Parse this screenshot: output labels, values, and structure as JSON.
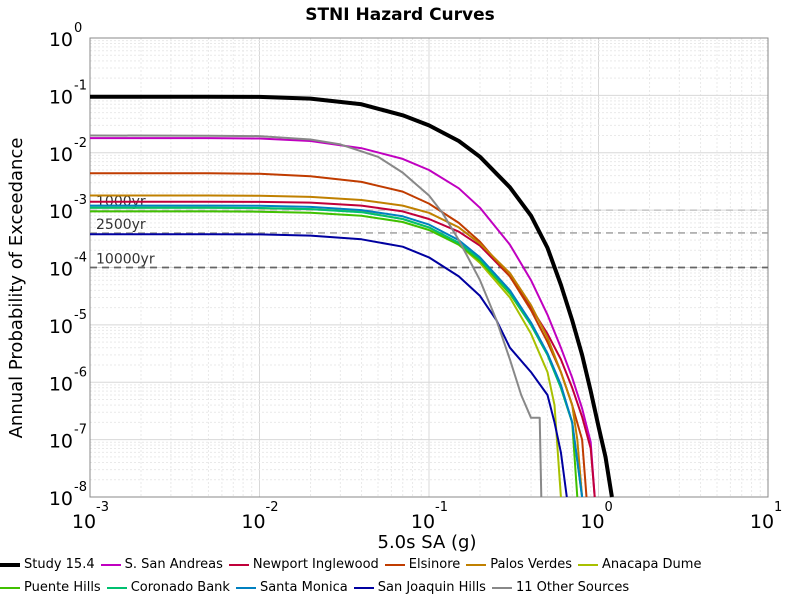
{
  "chart_data": {
    "type": "line",
    "title": "STNI Hazard Curves",
    "xlabel": "5.0s SA (g)",
    "ylabel": "Annual Probability of Exceedance",
    "xscale": "log",
    "yscale": "log",
    "xlim": [
      0.001,
      10
    ],
    "ylim": [
      1e-08,
      1
    ],
    "x_ticks": [
      {
        "base": "10",
        "exp": "-3",
        "value": 0.001
      },
      {
        "base": "10",
        "exp": "-2",
        "value": 0.01
      },
      {
        "base": "10",
        "exp": "-1",
        "value": 0.1
      },
      {
        "base": "10",
        "exp": "0",
        "value": 1
      },
      {
        "base": "10",
        "exp": "1",
        "value": 10
      }
    ],
    "y_ticks": [
      {
        "base": "10",
        "exp": "0",
        "value": 1
      },
      {
        "base": "10",
        "exp": "-1",
        "value": 0.1
      },
      {
        "base": "10",
        "exp": "-2",
        "value": 0.01
      },
      {
        "base": "10",
        "exp": "-3",
        "value": 0.001
      },
      {
        "base": "10",
        "exp": "-4",
        "value": 0.0001
      },
      {
        "base": "10",
        "exp": "-5",
        "value": 1e-05
      },
      {
        "base": "10",
        "exp": "-6",
        "value": 1e-06
      },
      {
        "base": "10",
        "exp": "-7",
        "value": 1e-07
      },
      {
        "base": "10",
        "exp": "-8",
        "value": 1e-08
      }
    ],
    "grid": true,
    "legend_position": "bottom",
    "reference_lines": [
      {
        "label": "1000yr",
        "y": 0.001
      },
      {
        "label": "2500yr",
        "y": 0.0004
      },
      {
        "label": "10000yr",
        "y": 0.0001
      }
    ],
    "series": [
      {
        "name": "Study 15.4",
        "color": "#000000",
        "width": 4,
        "points": [
          [
            0.001,
            0.095
          ],
          [
            0.005,
            0.095
          ],
          [
            0.01,
            0.094
          ],
          [
            0.02,
            0.088
          ],
          [
            0.04,
            0.07
          ],
          [
            0.07,
            0.045
          ],
          [
            0.1,
            0.03
          ],
          [
            0.15,
            0.016
          ],
          [
            0.2,
            0.0085
          ],
          [
            0.3,
            0.0025
          ],
          [
            0.4,
            0.0008
          ],
          [
            0.5,
            0.00022
          ],
          [
            0.6,
            5e-05
          ],
          [
            0.7,
            1.2e-05
          ],
          [
            0.8,
            3e-06
          ],
          [
            0.9,
            7e-07
          ],
          [
            1.0,
            1.7e-07
          ],
          [
            1.1,
            5e-08
          ],
          [
            1.2,
            1e-08
          ]
        ]
      },
      {
        "name": "S. San Andreas",
        "color": "#c000c0",
        "width": 2,
        "points": [
          [
            0.001,
            0.018
          ],
          [
            0.005,
            0.018
          ],
          [
            0.01,
            0.0177
          ],
          [
            0.02,
            0.016
          ],
          [
            0.04,
            0.012
          ],
          [
            0.07,
            0.0078
          ],
          [
            0.1,
            0.005
          ],
          [
            0.15,
            0.0024
          ],
          [
            0.2,
            0.0011
          ],
          [
            0.3,
            0.00025
          ],
          [
            0.4,
            6e-05
          ],
          [
            0.5,
            1.5e-05
          ],
          [
            0.6,
            4e-06
          ],
          [
            0.7,
            1.2e-06
          ],
          [
            0.8,
            3.5e-07
          ],
          [
            0.9,
            9e-08
          ],
          [
            0.95,
            1e-08
          ]
        ]
      },
      {
        "name": "Newport Inglewood",
        "color": "#c0003a",
        "width": 2,
        "points": [
          [
            0.001,
            0.0014
          ],
          [
            0.005,
            0.0014
          ],
          [
            0.01,
            0.00139
          ],
          [
            0.02,
            0.00135
          ],
          [
            0.04,
            0.0012
          ],
          [
            0.07,
            0.00095
          ],
          [
            0.1,
            0.0007
          ],
          [
            0.15,
            0.00042
          ],
          [
            0.2,
            0.00024
          ],
          [
            0.3,
            7e-05
          ],
          [
            0.4,
            2e-05
          ],
          [
            0.5,
            7e-06
          ],
          [
            0.6,
            2.5e-06
          ],
          [
            0.7,
            8e-07
          ],
          [
            0.8,
            2.5e-07
          ],
          [
            0.9,
            7e-08
          ],
          [
            0.95,
            1e-08
          ]
        ]
      },
      {
        "name": "Elsinore",
        "color": "#c03c00",
        "width": 2,
        "points": [
          [
            0.001,
            0.0044
          ],
          [
            0.005,
            0.0044
          ],
          [
            0.01,
            0.0043
          ],
          [
            0.02,
            0.0039
          ],
          [
            0.04,
            0.0031
          ],
          [
            0.07,
            0.0021
          ],
          [
            0.1,
            0.0013
          ],
          [
            0.15,
            0.0006
          ],
          [
            0.2,
            0.00028
          ],
          [
            0.3,
            7e-05
          ],
          [
            0.4,
            1.8e-05
          ],
          [
            0.5,
            5e-06
          ],
          [
            0.6,
            1.5e-06
          ],
          [
            0.7,
            4e-07
          ],
          [
            0.8,
            1e-07
          ],
          [
            0.85,
            1e-08
          ]
        ]
      },
      {
        "name": "Palos Verdes",
        "color": "#c08000",
        "width": 2,
        "points": [
          [
            0.001,
            0.0018
          ],
          [
            0.005,
            0.0018
          ],
          [
            0.01,
            0.00178
          ],
          [
            0.02,
            0.0017
          ],
          [
            0.04,
            0.0015
          ],
          [
            0.07,
            0.0012
          ],
          [
            0.1,
            0.0009
          ],
          [
            0.15,
            0.0005
          ],
          [
            0.2,
            0.00026
          ],
          [
            0.3,
            8e-05
          ],
          [
            0.4,
            2.2e-05
          ],
          [
            0.5,
            6e-06
          ],
          [
            0.6,
            1.5e-06
          ],
          [
            0.7,
            4e-07
          ],
          [
            0.75,
            1e-07
          ],
          [
            0.8,
            1e-08
          ]
        ]
      },
      {
        "name": "Anacapa Dume",
        "color": "#a8c000",
        "width": 2,
        "points": [
          [
            0.001,
            0.0011
          ],
          [
            0.005,
            0.0011
          ],
          [
            0.01,
            0.00108
          ],
          [
            0.02,
            0.00104
          ],
          [
            0.04,
            0.00093
          ],
          [
            0.07,
            0.0007
          ],
          [
            0.1,
            0.0005
          ],
          [
            0.15,
            0.00025
          ],
          [
            0.2,
            0.00012
          ],
          [
            0.3,
            3e-05
          ],
          [
            0.4,
            7e-06
          ],
          [
            0.5,
            1.5e-06
          ],
          [
            0.55,
            4e-07
          ],
          [
            0.6,
            1e-08
          ]
        ]
      },
      {
        "name": "Puente Hills",
        "color": "#40c000",
        "width": 2,
        "points": [
          [
            0.001,
            0.00095
          ],
          [
            0.005,
            0.00095
          ],
          [
            0.01,
            0.00094
          ],
          [
            0.02,
            0.0009
          ],
          [
            0.04,
            0.0008
          ],
          [
            0.07,
            0.00062
          ],
          [
            0.1,
            0.00045
          ],
          [
            0.15,
            0.00025
          ],
          [
            0.2,
            0.00013
          ],
          [
            0.3,
            3.5e-05
          ],
          [
            0.4,
            1e-05
          ],
          [
            0.5,
            3e-06
          ],
          [
            0.6,
            8e-07
          ],
          [
            0.7,
            2e-07
          ],
          [
            0.75,
            1e-08
          ]
        ]
      },
      {
        "name": "Coronado Bank",
        "color": "#00c070",
        "width": 2,
        "points": [
          [
            0.001,
            0.0011
          ],
          [
            0.005,
            0.0011
          ],
          [
            0.01,
            0.00109
          ],
          [
            0.02,
            0.00104
          ],
          [
            0.04,
            0.00092
          ],
          [
            0.07,
            0.0007
          ],
          [
            0.1,
            0.0005
          ],
          [
            0.15,
            0.00027
          ],
          [
            0.2,
            0.00014
          ],
          [
            0.3,
            3.7e-05
          ],
          [
            0.4,
            1e-05
          ],
          [
            0.5,
            3e-06
          ],
          [
            0.6,
            8e-07
          ],
          [
            0.7,
            2e-07
          ],
          [
            0.8,
            1e-08
          ]
        ]
      },
      {
        "name": "Santa Monica",
        "color": "#0080c0",
        "width": 2,
        "points": [
          [
            0.001,
            0.0012
          ],
          [
            0.005,
            0.0012
          ],
          [
            0.01,
            0.00119
          ],
          [
            0.02,
            0.00114
          ],
          [
            0.04,
            0.001
          ],
          [
            0.07,
            0.00078
          ],
          [
            0.1,
            0.00056
          ],
          [
            0.15,
            0.0003
          ],
          [
            0.2,
            0.00015
          ],
          [
            0.3,
            4e-05
          ],
          [
            0.4,
            1.1e-05
          ],
          [
            0.5,
            3.2e-06
          ],
          [
            0.6,
            9e-07
          ],
          [
            0.7,
            2e-07
          ],
          [
            0.8,
            1e-08
          ]
        ]
      },
      {
        "name": "San Joaquin Hills",
        "color": "#0000a0",
        "width": 2,
        "points": [
          [
            0.001,
            0.00038
          ],
          [
            0.005,
            0.00038
          ],
          [
            0.01,
            0.000378
          ],
          [
            0.02,
            0.00036
          ],
          [
            0.04,
            0.00031
          ],
          [
            0.07,
            0.00023
          ],
          [
            0.1,
            0.00015
          ],
          [
            0.15,
            7e-05
          ],
          [
            0.2,
            3.2e-05
          ],
          [
            0.25,
            1.2e-05
          ],
          [
            0.3,
            4e-06
          ],
          [
            0.4,
            1.5e-06
          ],
          [
            0.5,
            6e-07
          ],
          [
            0.55,
            2e-07
          ],
          [
            0.6,
            6e-08
          ],
          [
            0.65,
            1e-08
          ]
        ]
      },
      {
        "name": "11 Other Sources",
        "color": "#888888",
        "width": 2,
        "points": [
          [
            0.001,
            0.02
          ],
          [
            0.005,
            0.0198
          ],
          [
            0.01,
            0.0195
          ],
          [
            0.02,
            0.017
          ],
          [
            0.03,
            0.014
          ],
          [
            0.05,
            0.0085
          ],
          [
            0.07,
            0.0045
          ],
          [
            0.1,
            0.0018
          ],
          [
            0.12,
            0.0009
          ],
          [
            0.15,
            0.0003
          ],
          [
            0.2,
            6e-05
          ],
          [
            0.25,
            1.2e-05
          ],
          [
            0.3,
            2.5e-06
          ],
          [
            0.35,
            6e-07
          ],
          [
            0.4,
            2.4e-07
          ],
          [
            0.45,
            2.4e-07
          ],
          [
            0.46,
            1e-08
          ]
        ]
      }
    ]
  }
}
